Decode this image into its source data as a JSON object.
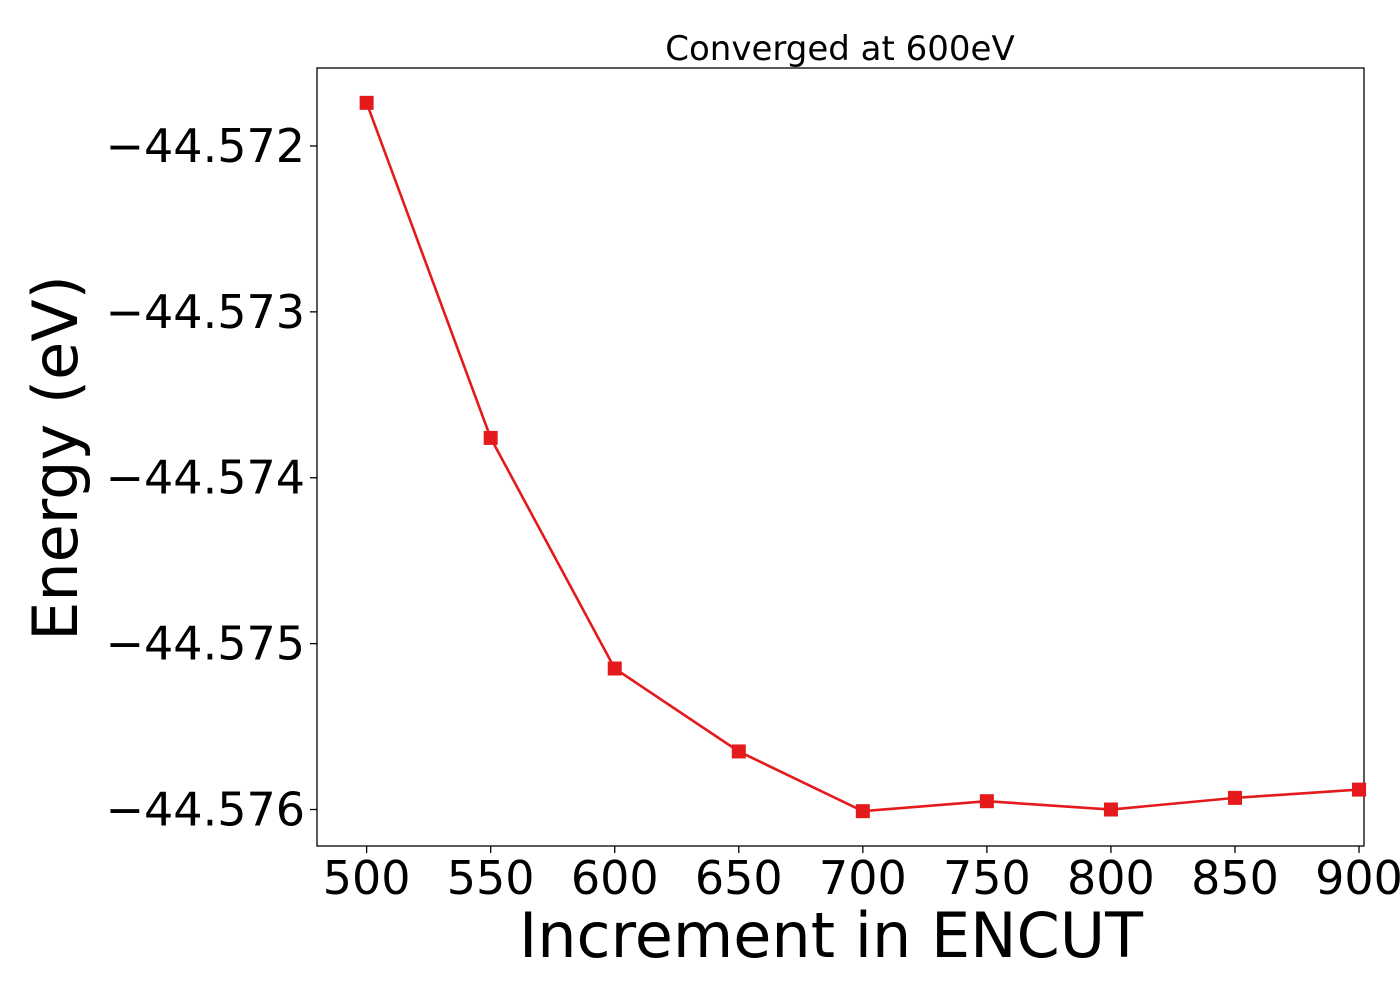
{
  "chart_data": {
    "type": "line",
    "title": "Converged at 600eV",
    "xlabel": "Increment in ENCUT",
    "ylabel": "Energy (eV)",
    "xlim": [
      480,
      902
    ],
    "ylim": [
      -44.57622,
      -44.57153
    ],
    "x_ticks": [
      500,
      550,
      600,
      650,
      700,
      750,
      800,
      850,
      900
    ],
    "x_tick_labels": [
      "500",
      "550",
      "600",
      "650",
      "700",
      "750",
      "800",
      "850",
      "900"
    ],
    "y_ticks": [
      -44.572,
      -44.573,
      -44.574,
      -44.575,
      -44.576
    ],
    "y_tick_labels": [
      "−44.572",
      "−44.573",
      "−44.574",
      "−44.575",
      "−44.576"
    ],
    "grid": false,
    "series": [
      {
        "color": "#e41a1c",
        "marker": "square",
        "x": [
          500,
          550,
          600,
          650,
          700,
          750,
          800,
          850,
          900
        ],
        "y": [
          -44.57174,
          -44.57376,
          -44.57515,
          -44.57565,
          -44.57601,
          -44.57595,
          -44.576,
          -44.57593,
          -44.57588
        ]
      }
    ]
  }
}
